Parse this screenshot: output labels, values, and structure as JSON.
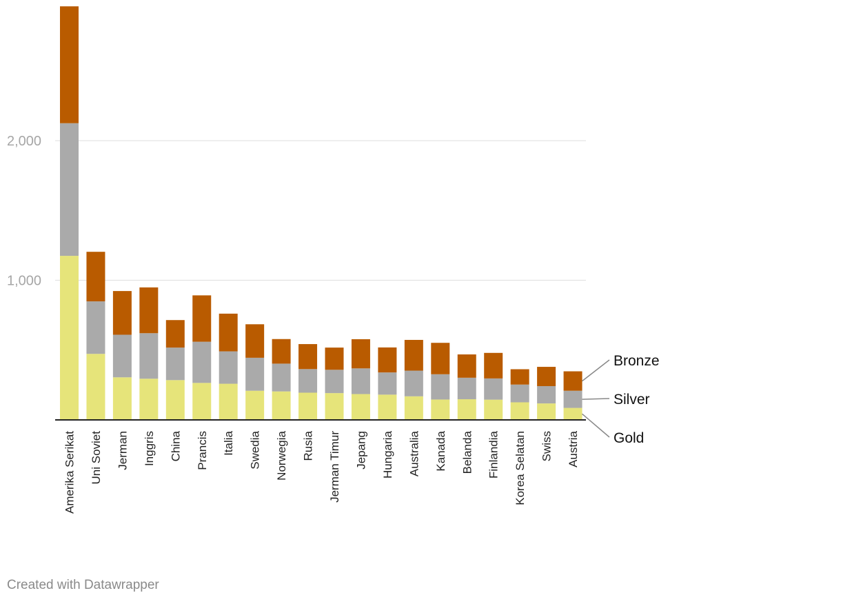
{
  "chart_data": {
    "type": "bar",
    "stacked": true,
    "categories": [
      "Amerika Serikat",
      "Uni Soviet",
      "Jerman",
      "Inggris",
      "China",
      "Prancis",
      "Italia",
      "Swedia",
      "Norwegia",
      "Rusia",
      "Jerman Timur",
      "Jepang",
      "Hungaria",
      "Australia",
      "Kanada",
      "Belanda",
      "Finlandia",
      "Korea Selatan",
      "Swiss",
      "Austria"
    ],
    "series": [
      {
        "name": "Gold",
        "color": "#e6e47a",
        "values": [
          1175,
          473,
          305,
          295,
          285,
          265,
          259,
          209,
          204,
          195,
          192,
          185,
          181,
          169,
          146,
          148,
          145,
          126,
          118,
          86
        ]
      },
      {
        "name": "Silver",
        "color": "#aaaaaa",
        "values": [
          950,
          376,
          305,
          326,
          233,
          295,
          232,
          236,
          199,
          169,
          167,
          184,
          159,
          184,
          181,
          154,
          152,
          127,
          124,
          123
        ]
      },
      {
        "name": "Bronze",
        "color": "#b95b00",
        "values": [
          837,
          355,
          313,
          328,
          197,
          332,
          270,
          240,
          176,
          179,
          159,
          209,
          179,
          220,
          225,
          167,
          183,
          110,
          138,
          139
        ]
      }
    ],
    "yticks": [
      1000,
      2000
    ],
    "ytick_labels": [
      "1,000",
      "2,000"
    ],
    "ylim": [
      0,
      2962
    ],
    "grid": true,
    "legend": "right, direct labels"
  },
  "footer": {
    "credit": "Created with Datawrapper"
  }
}
